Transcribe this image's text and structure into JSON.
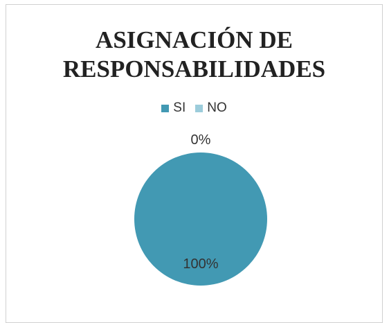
{
  "chart_data": {
    "type": "pie",
    "title": "ASIGNACIÓN DE RESPONSABILIDADES",
    "title_lines": [
      "ASIGNACIÓN DE",
      "RESPONSABILIDADES"
    ],
    "categories": [
      "SI",
      "NO"
    ],
    "values": [
      100,
      0
    ],
    "data_labels": [
      "100%",
      "0%"
    ],
    "colors": [
      "#4299B3",
      "#9CCCDB"
    ],
    "legend_position": "top"
  }
}
